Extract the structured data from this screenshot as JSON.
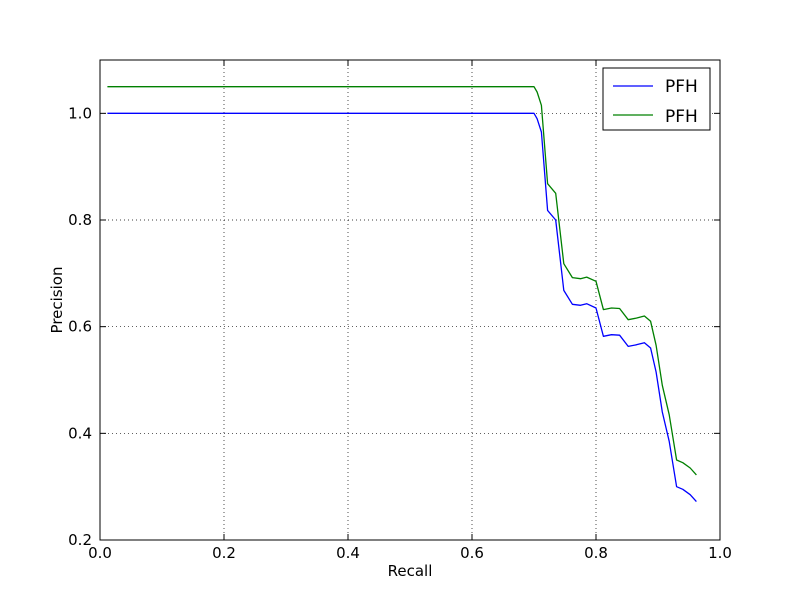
{
  "chart_data": {
    "type": "line",
    "title": "",
    "xlabel": "Recall",
    "ylabel": "Precision",
    "xlim": [
      0.0,
      1.0
    ],
    "ylim": [
      0.2,
      1.1
    ],
    "xticks": [
      "0.0",
      "0.2",
      "0.4",
      "0.6",
      "0.8",
      "1.0"
    ],
    "yticks": [
      "0.2",
      "0.4",
      "0.6",
      "0.8",
      "1.0"
    ],
    "grid": true,
    "grid_style": "dotted",
    "legend_position": "top-right",
    "series": [
      {
        "name": "PFH",
        "color": "#0000ff",
        "x": [
          0.012,
          0.7,
          0.705,
          0.712,
          0.722,
          0.735,
          0.748,
          0.762,
          0.775,
          0.785,
          0.8,
          0.812,
          0.825,
          0.838,
          0.852,
          0.865,
          0.878,
          0.888,
          0.897,
          0.907,
          0.918,
          0.93,
          0.94,
          0.952,
          0.962
        ],
        "y": [
          1.0,
          1.0,
          0.99,
          0.965,
          0.818,
          0.8,
          0.668,
          0.642,
          0.64,
          0.643,
          0.635,
          0.582,
          0.585,
          0.584,
          0.563,
          0.566,
          0.57,
          0.56,
          0.515,
          0.44,
          0.385,
          0.3,
          0.295,
          0.285,
          0.272
        ]
      },
      {
        "name": "PFH",
        "color": "#008000",
        "x": [
          0.012,
          0.7,
          0.705,
          0.712,
          0.722,
          0.735,
          0.748,
          0.762,
          0.775,
          0.785,
          0.8,
          0.812,
          0.825,
          0.838,
          0.852,
          0.865,
          0.878,
          0.888,
          0.897,
          0.907,
          0.918,
          0.93,
          0.94,
          0.952,
          0.962
        ],
        "y": [
          1.05,
          1.05,
          1.04,
          1.015,
          0.868,
          0.85,
          0.718,
          0.692,
          0.69,
          0.693,
          0.685,
          0.632,
          0.635,
          0.634,
          0.613,
          0.616,
          0.62,
          0.61,
          0.565,
          0.49,
          0.435,
          0.35,
          0.345,
          0.335,
          0.322
        ]
      }
    ]
  }
}
